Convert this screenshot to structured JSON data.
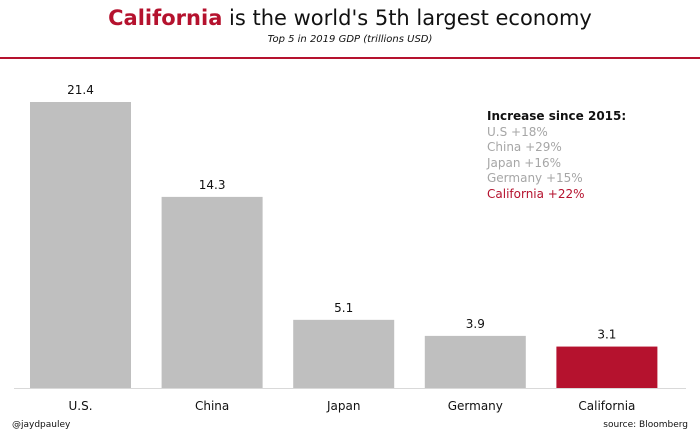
{
  "header": {
    "title_highlight": "California",
    "title_rest": " is the world's 5th largest economy",
    "subtitle": "Top 5 in 2019 GDP (trillions USD)"
  },
  "colors": {
    "accent": "#b5122e",
    "bar": "#bfbfbf",
    "text_muted": "#a6a6a6"
  },
  "chart_data": {
    "type": "bar",
    "title": "California is the world's 5th largest economy",
    "subtitle": "Top 5 in 2019 GDP (trillions USD)",
    "categories": [
      "U.S.",
      "China",
      "Japan",
      "Germany",
      "California"
    ],
    "values": [
      21.4,
      14.3,
      5.1,
      3.9,
      3.1
    ],
    "value_labels": [
      "21.4",
      "14.3",
      "5.1",
      "3.9",
      "3.1"
    ],
    "highlight": "California",
    "ylim": [
      0,
      21.4
    ],
    "grid": false,
    "xlabel": "",
    "ylabel": ""
  },
  "legend": {
    "heading": "Increase since 2015:",
    "items": [
      {
        "label": "U.S +18%",
        "highlight": false
      },
      {
        "label": "China +29%",
        "highlight": false
      },
      {
        "label": "Japan +16%",
        "highlight": false
      },
      {
        "label": "Germany +15%",
        "highlight": false
      },
      {
        "label": "California +22%",
        "highlight": true
      }
    ]
  },
  "footer": {
    "author": "@jaydpauley",
    "source": "source: Bloomberg"
  }
}
